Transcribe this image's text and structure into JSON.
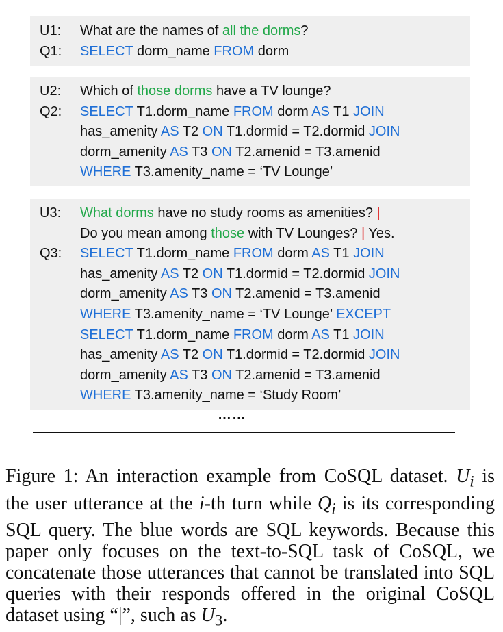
{
  "figure": {
    "blocks": [
      {
        "lines": [
          {
            "label": "U1:",
            "segments": [
              {
                "t": "What are the names of ",
                "c": "plain"
              },
              {
                "t": "all the dorms",
                "c": "hl"
              },
              {
                "t": "?",
                "c": "plain"
              }
            ]
          },
          {
            "label": "Q1:",
            "segments": [
              {
                "t": "SELECT",
                "c": "kw"
              },
              {
                "t": " dorm_name ",
                "c": "plain"
              },
              {
                "t": "FROM",
                "c": "kw"
              },
              {
                "t": " dorm",
                "c": "plain"
              }
            ]
          }
        ]
      },
      {
        "lines": [
          {
            "label": "U2:",
            "segments": [
              {
                "t": "Which of ",
                "c": "plain"
              },
              {
                "t": "those dorms",
                "c": "hl"
              },
              {
                "t": " have a TV lounge?",
                "c": "plain"
              }
            ]
          },
          {
            "label": "Q2:",
            "segments": [
              {
                "t": "SELECT",
                "c": "kw"
              },
              {
                "t": " T1.dorm_name ",
                "c": "plain"
              },
              {
                "t": "FROM",
                "c": "kw"
              },
              {
                "t": " dorm ",
                "c": "plain"
              },
              {
                "t": "AS",
                "c": "kw"
              },
              {
                "t": " T1 ",
                "c": "plain"
              },
              {
                "t": "JOIN",
                "c": "kw"
              }
            ]
          },
          {
            "label": "",
            "segments": [
              {
                "t": "has_amenity ",
                "c": "plain"
              },
              {
                "t": "AS",
                "c": "kw"
              },
              {
                "t": " T2 ",
                "c": "plain"
              },
              {
                "t": "ON",
                "c": "kw"
              },
              {
                "t": " T1.dormid = T2.dormid ",
                "c": "plain"
              },
              {
                "t": "JOIN",
                "c": "kw"
              }
            ]
          },
          {
            "label": "",
            "segments": [
              {
                "t": "dorm_amenity ",
                "c": "plain"
              },
              {
                "t": "AS",
                "c": "kw"
              },
              {
                "t": " T3 ",
                "c": "plain"
              },
              {
                "t": "ON",
                "c": "kw"
              },
              {
                "t": " T2.amenid = T3.amenid",
                "c": "plain"
              }
            ]
          },
          {
            "label": "",
            "segments": [
              {
                "t": "WHERE",
                "c": "kw"
              },
              {
                "t": " T3.amenity_name = ‘TV Lounge’",
                "c": "plain"
              }
            ]
          }
        ]
      },
      {
        "lines": [
          {
            "label": "U3:",
            "segments": [
              {
                "t": "What dorms",
                "c": "hl"
              },
              {
                "t": " have no study rooms as amenities? ",
                "c": "plain"
              },
              {
                "t": "|",
                "c": "sep"
              }
            ]
          },
          {
            "label": "",
            "segments": [
              {
                "t": "Do you mean among ",
                "c": "plain"
              },
              {
                "t": "those",
                "c": "hl"
              },
              {
                "t": " with TV Lounges? ",
                "c": "plain"
              },
              {
                "t": "|",
                "c": "sep"
              },
              {
                "t": " Yes.",
                "c": "plain"
              }
            ]
          },
          {
            "label": "Q3:",
            "segments": [
              {
                "t": "SELECT",
                "c": "kw"
              },
              {
                "t": " T1.dorm_name ",
                "c": "plain"
              },
              {
                "t": "FROM",
                "c": "kw"
              },
              {
                "t": " dorm ",
                "c": "plain"
              },
              {
                "t": "AS",
                "c": "kw"
              },
              {
                "t": " T1 ",
                "c": "plain"
              },
              {
                "t": "JOIN",
                "c": "kw"
              }
            ]
          },
          {
            "label": "",
            "segments": [
              {
                "t": "has_amenity ",
                "c": "plain"
              },
              {
                "t": "AS",
                "c": "kw"
              },
              {
                "t": " T2 ",
                "c": "plain"
              },
              {
                "t": "ON",
                "c": "kw"
              },
              {
                "t": " T1.dormid = T2.dormid ",
                "c": "plain"
              },
              {
                "t": "JOIN",
                "c": "kw"
              }
            ]
          },
          {
            "label": "",
            "segments": [
              {
                "t": "dorm_amenity ",
                "c": "plain"
              },
              {
                "t": "AS",
                "c": "kw"
              },
              {
                "t": " T3 ",
                "c": "plain"
              },
              {
                "t": "ON",
                "c": "kw"
              },
              {
                "t": " T2.amenid = T3.amenid",
                "c": "plain"
              }
            ]
          },
          {
            "label": "",
            "segments": [
              {
                "t": "WHERE",
                "c": "kw"
              },
              {
                "t": " T3.amenity_name = ‘TV Lounge’ ",
                "c": "plain"
              },
              {
                "t": "EXCEPT",
                "c": "kw"
              }
            ]
          },
          {
            "label": "",
            "segments": [
              {
                "t": "SELECT",
                "c": "kw"
              },
              {
                "t": " T1.dorm_name ",
                "c": "plain"
              },
              {
                "t": "FROM",
                "c": "kw"
              },
              {
                "t": " dorm ",
                "c": "plain"
              },
              {
                "t": "AS",
                "c": "kw"
              },
              {
                "t": " T1 ",
                "c": "plain"
              },
              {
                "t": "JOIN",
                "c": "kw"
              }
            ]
          },
          {
            "label": "",
            "segments": [
              {
                "t": "has_amenity ",
                "c": "plain"
              },
              {
                "t": "AS",
                "c": "kw"
              },
              {
                "t": " T2 ",
                "c": "plain"
              },
              {
                "t": "ON",
                "c": "kw"
              },
              {
                "t": " T1.dormid = T2.dormid ",
                "c": "plain"
              },
              {
                "t": "JOIN",
                "c": "kw"
              }
            ]
          },
          {
            "label": "",
            "segments": [
              {
                "t": "dorm_amenity ",
                "c": "plain"
              },
              {
                "t": "AS",
                "c": "kw"
              },
              {
                "t": " T3 ",
                "c": "plain"
              },
              {
                "t": "ON",
                "c": "kw"
              },
              {
                "t": " T2.amenid = T3.amenid",
                "c": "plain"
              }
            ]
          },
          {
            "label": "",
            "segments": [
              {
                "t": "WHERE",
                "c": "kw"
              },
              {
                "t": " T3.amenity_name = ‘Study Room’",
                "c": "plain"
              }
            ]
          }
        ]
      }
    ],
    "ellipsis": "……",
    "colors": {
      "keyword": "#1f6fd6",
      "highlight": "#22a84a",
      "separator": "#e02424",
      "box_bg": "#efefef"
    }
  },
  "caption": {
    "p1": "Figure 1: An interaction example from CoSQL dataset.",
    "u_sym": "U",
    "u_sub": "i",
    "p2": " is the user utterance at the ",
    "i_sym": "i",
    "p3": "-th turn while ",
    "q_sym": "Q",
    "q_sub": "i",
    "p4": " is its corresponding SQL query. The blue words are SQL keywords. Because this paper only focuses on the text-to-SQL task of CoSQL, we concatenate those utterances that cannot be translated into SQL queries with their responds offered in the original CoSQL dataset using “|”, such as ",
    "u3_sym": "U",
    "u3_sub": "3",
    "p5": "."
  }
}
